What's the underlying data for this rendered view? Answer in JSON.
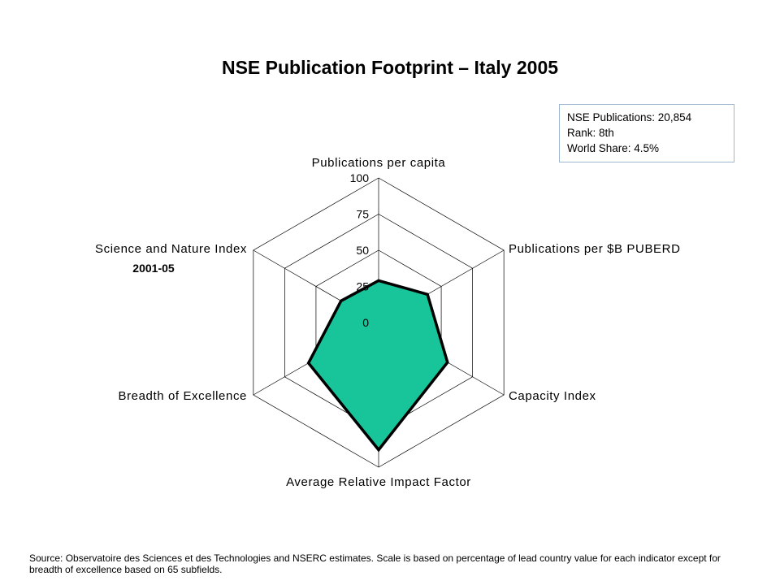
{
  "title": "NSE Publication Footprint – Italy 2005",
  "info": {
    "publications": "NSE Publications: 20,854",
    "rank": "Rank: 8th",
    "world_share": "World Share: 4.5%"
  },
  "source_note": "Source: Observatoire des Sciences et des Technologies and NSERC estimates. Scale is based on percentage of lead country value for each indicator except for breadth of excellence based on 65 subfields.",
  "colors": {
    "fill": "#18c49a",
    "outline": "#000000",
    "grid": "#000000"
  },
  "chart_data": {
    "type": "radar",
    "title": "NSE Publication Footprint – Italy 2005",
    "axes": [
      {
        "label": "Publications per capita"
      },
      {
        "label": "Publications per $B PUBERD"
      },
      {
        "label": "Capacity Index"
      },
      {
        "label": "Average Relative Impact Factor"
      },
      {
        "label": "Breadth of Excellence"
      },
      {
        "label": "Science and Nature Index",
        "sublabel": "2001-05"
      }
    ],
    "ticks": [
      "0",
      "25",
      "50",
      "75",
      "100"
    ],
    "range": [
      0,
      100
    ],
    "series": [
      {
        "values": [
          29,
          39,
          55,
          88,
          56,
          30
        ]
      }
    ]
  }
}
